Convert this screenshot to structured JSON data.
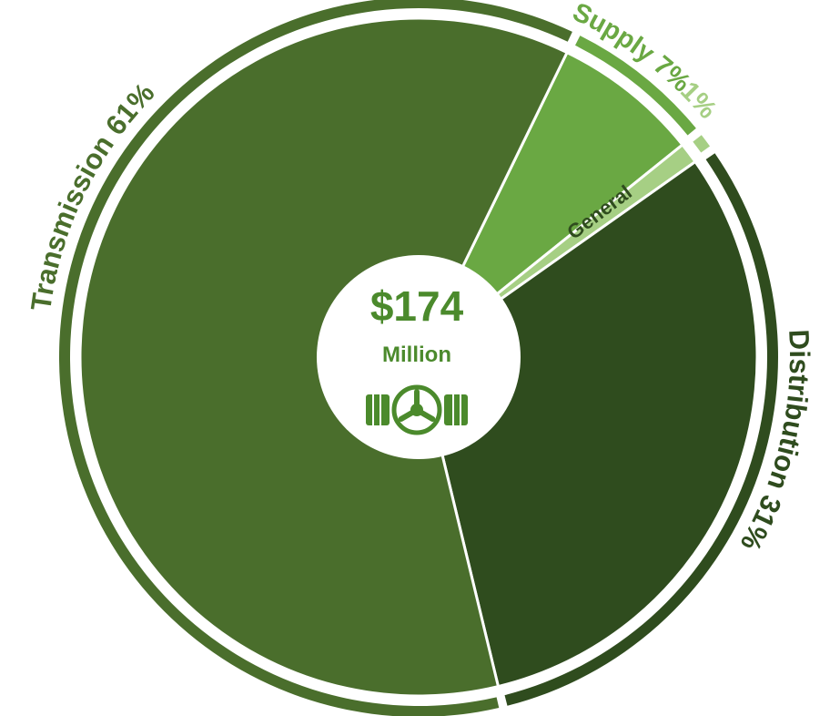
{
  "chart_data": {
    "type": "pie",
    "style": "donut-with-outer-ring",
    "center": {
      "value_text": "$174",
      "unit_text": "Million",
      "icon": "pipe-valve-icon"
    },
    "slices": [
      {
        "name": "Transmission",
        "value": 61,
        "percent_label": "61%",
        "label_text": "Transmission 61%",
        "color": "#4a6e2c"
      },
      {
        "name": "Supply",
        "value": 7,
        "percent_label": "7%",
        "label_text": "Supply 7%",
        "color": "#6aa843"
      },
      {
        "name": "General",
        "value": 1,
        "percent_label": "1%",
        "label_text": "General",
        "color": "#a6cf84"
      },
      {
        "name": "Distribution",
        "value": 31,
        "percent_label": "31%",
        "label_text": "Distribution 31%",
        "color": "#2f4c1e"
      }
    ],
    "colors": {
      "center_text": "#4b8a2c",
      "separator": "#ffffff"
    }
  }
}
